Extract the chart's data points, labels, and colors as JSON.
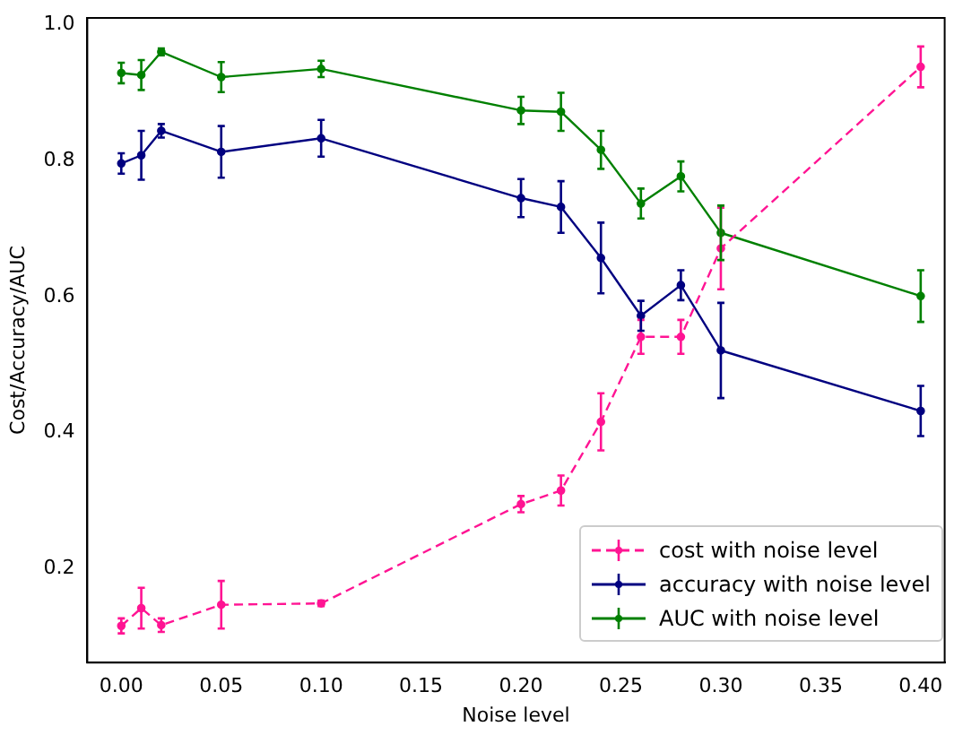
{
  "chart_data": {
    "type": "line",
    "xlabel": "Noise level",
    "ylabel": "Cost/Accuracy/AUC",
    "xlim": [
      -0.017,
      0.412
    ],
    "xticks": [
      {
        "value": 0,
        "label": "0.00"
      },
      {
        "value": 0.05,
        "label": "0.05"
      },
      {
        "value": 0.1,
        "label": "0.10"
      },
      {
        "value": 0.15,
        "label": "0.15"
      },
      {
        "value": 0.2,
        "label": "0.20"
      },
      {
        "value": 0.25,
        "label": "0.25"
      },
      {
        "value": 0.3,
        "label": "0.30"
      },
      {
        "value": 0.35,
        "label": "0.35"
      },
      {
        "value": 0.4,
        "label": "0.40"
      }
    ],
    "ylim": [
      0.062,
      1.01
    ],
    "yticks": [
      {
        "value": 0.2,
        "label": "0.2"
      },
      {
        "value": 0.4,
        "label": "0.4"
      },
      {
        "value": 0.6,
        "label": "0.6"
      },
      {
        "value": 0.8,
        "label": "0.8"
      },
      {
        "value": 1.0,
        "label": "1.0"
      }
    ],
    "x": [
      0,
      0.01,
      0.02,
      0.05,
      0.1,
      0.2,
      0.22,
      0.24,
      0.26,
      0.28,
      0.3,
      0.4
    ],
    "marker": "circle",
    "grid": false,
    "legend": "bottom right",
    "series": [
      {
        "name": "cost with noise level",
        "color": "#ff1493",
        "line_style": "dashed",
        "values": [
          0.116,
          0.142,
          0.117,
          0.147,
          0.149,
          0.295,
          0.315,
          0.416,
          0.541,
          0.541,
          0.671,
          0.938
        ],
        "errors": [
          0.011,
          0.03,
          0.01,
          0.035,
          0.004,
          0.012,
          0.022,
          0.042,
          0.025,
          0.025,
          0.06,
          0.03
        ]
      },
      {
        "name": "accuracy with noise level",
        "color": "#000080",
        "line_style": "solid",
        "values": [
          0.796,
          0.808,
          0.844,
          0.813,
          0.833,
          0.745,
          0.732,
          0.657,
          0.572,
          0.617,
          0.521,
          0.432
        ],
        "errors": [
          0.015,
          0.036,
          0.01,
          0.038,
          0.027,
          0.028,
          0.038,
          0.052,
          0.022,
          0.022,
          0.07,
          0.037
        ]
      },
      {
        "name": "AUC with noise level",
        "color": "#008000",
        "line_style": "solid",
        "values": [
          0.929,
          0.926,
          0.96,
          0.923,
          0.935,
          0.874,
          0.872,
          0.816,
          0.737,
          0.777,
          0.694,
          0.601
        ],
        "errors": [
          0.015,
          0.022,
          0.005,
          0.022,
          0.012,
          0.02,
          0.028,
          0.028,
          0.022,
          0.022,
          0.04,
          0.038
        ]
      }
    ]
  }
}
